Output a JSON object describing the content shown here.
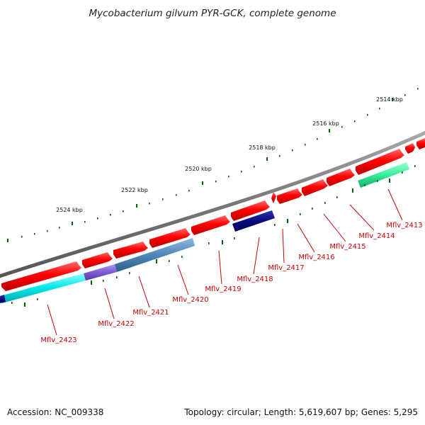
{
  "title": "Mycobacterium gilvum PYR-GCK, complete genome",
  "footer": {
    "accession": "Accession: NC_009338",
    "summary": "Topology: circular; Length: 5,619,607 bp; Genes: 5,295"
  },
  "scale_labels": [
    "2514 kbp",
    "2516 kbp",
    "2518 kbp",
    "2520 kbp",
    "2522 kbp",
    "2524 kbp"
  ],
  "gene_labels": [
    "Mflv_2413",
    "Mflv_2414",
    "Mflv_2415",
    "Mflv_2416",
    "Mflv_2417",
    "Mflv_2418",
    "Mflv_2419",
    "Mflv_2420",
    "Mflv_2421",
    "Mflv_2422",
    "Mflv_2423"
  ],
  "colors": {
    "backbone": "#777777",
    "forward_gene": "#ff0000",
    "scale_tick": "#006600",
    "label": "#cc0000",
    "cyan_gene": "#00e5e5",
    "steelblue_gene": "#4f86b9",
    "navy_gene": "#0a0a80",
    "purple_gene": "#7a5cd0",
    "seagreen_gene": "#33ee99"
  }
}
